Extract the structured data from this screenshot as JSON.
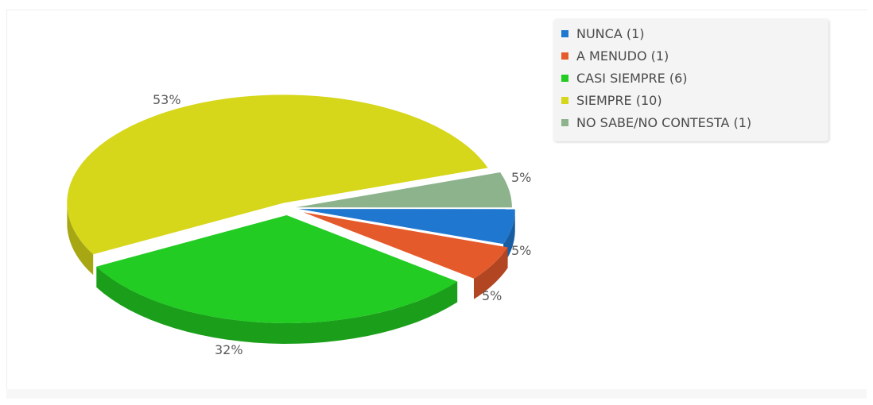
{
  "chart_data": {
    "type": "pie",
    "is_3d": true,
    "legend_position": "top-right",
    "slices": [
      {
        "label": "NUNCA (1)",
        "value": 1,
        "percent_label": "5%",
        "color": "#1f77d0"
      },
      {
        "label": "A MENUDO (1)",
        "value": 1,
        "percent_label": "5%",
        "color": "#e55a2b"
      },
      {
        "label": "CASI SIEMPRE (6)",
        "value": 6,
        "percent_label": "32%",
        "color": "#22cc22"
      },
      {
        "label": "SIEMPRE (10)",
        "value": 10,
        "percent_label": "53%",
        "color": "#d6d61a"
      },
      {
        "label": "NO SABE/NO CONTESTA (1)",
        "value": 1,
        "percent_label": "5%",
        "color": "#8db38d"
      }
    ]
  }
}
